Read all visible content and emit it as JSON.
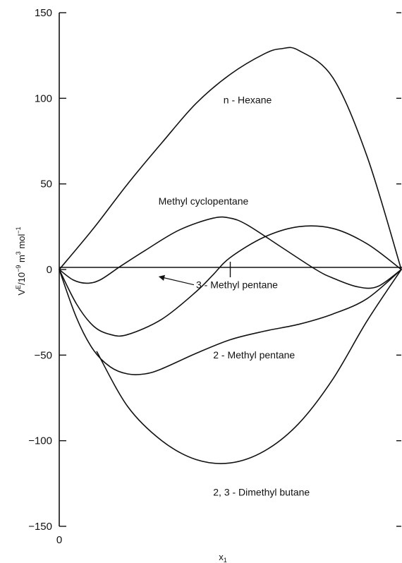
{
  "chart_data": {
    "type": "line",
    "title": "",
    "xlabel": "x",
    "xlabel_subscript": "1",
    "ylabel": "V^E/10^-9 m^3 mol^-1",
    "ylabel_parts": {
      "base": "V",
      "base_sup": "E",
      "div": "/10",
      "exp1": "−9",
      "unit": " m",
      "exp2": "3",
      "mol": " mol",
      "exp3": "−1"
    },
    "xlim": [
      0,
      1
    ],
    "ylim": [
      -150,
      150
    ],
    "yticks": [
      150,
      100,
      50,
      0,
      -50,
      -100,
      -150
    ],
    "ytick_labels": [
      "150",
      "100",
      "50",
      "0",
      "−50",
      "−100",
      "−150"
    ],
    "xtick_labels": [
      "0"
    ],
    "grid": false,
    "legend": "none",
    "colors": {
      "line": "#111111",
      "background": "#ffffff"
    },
    "series": [
      {
        "name": "n-Hexane",
        "label": "n - Hexane",
        "x": [
          0,
          0.1,
          0.2,
          0.3,
          0.4,
          0.5,
          0.6,
          0.65,
          0.7,
          0.8,
          0.9,
          1.0
        ],
        "y": [
          0,
          24,
          50,
          74,
          97,
          114,
          126,
          129,
          128,
          112,
          66,
          0
        ]
      },
      {
        "name": "Methyl cyclopentane",
        "label": "Methyl cyclopentane",
        "x": [
          0,
          0.04,
          0.08,
          0.12,
          0.18,
          0.25,
          0.35,
          0.45,
          0.5,
          0.55,
          0.65,
          0.75,
          0.8,
          0.87,
          0.93,
          1.0
        ],
        "y": [
          0,
          -6,
          -8,
          -6,
          2,
          11,
          23,
          30,
          30,
          26,
          13,
          0,
          -5,
          -10,
          -10,
          0
        ]
      },
      {
        "name": "3-Methyl pentane",
        "label": "3 - Methyl pentane",
        "x": [
          0,
          0.05,
          0.1,
          0.15,
          0.2,
          0.3,
          0.4,
          0.45,
          0.5,
          0.6,
          0.7,
          0.8,
          0.9,
          1.0
        ],
        "y": [
          0,
          -20,
          -33,
          -38,
          -38,
          -29,
          -13,
          -3,
          7,
          19,
          25,
          24,
          15,
          0
        ]
      },
      {
        "name": "2-Methyl pentane",
        "label": "2 - Methyl pentane",
        "x": [
          0,
          0.05,
          0.1,
          0.15,
          0.2,
          0.25,
          0.3,
          0.4,
          0.5,
          0.6,
          0.7,
          0.8,
          0.9,
          1.0
        ],
        "y": [
          0,
          -28,
          -47,
          -57,
          -61,
          -61,
          -58,
          -49,
          -41,
          -36,
          -32,
          -26,
          -17,
          0
        ]
      },
      {
        "name": "2,3-Dimethyl butane",
        "label": "2, 3 - Dimethyl butane",
        "x": [
          0.11,
          0.2,
          0.3,
          0.4,
          0.5,
          0.6,
          0.7,
          0.8,
          0.9,
          1.0
        ],
        "y": [
          -48,
          -80,
          -100,
          -111,
          -113,
          -106,
          -90,
          -64,
          -30,
          0
        ]
      }
    ],
    "annotations": [
      {
        "text": "n - Hexane",
        "target": "n-Hexane",
        "at": [
          0.48,
          97
        ]
      },
      {
        "text": "Methyl cyclopentane",
        "target": "Methyl cyclopentane",
        "at": [
          0.29,
          38
        ]
      },
      {
        "text": "3 - Methyl pentane",
        "target": "3-Methyl pentane",
        "at": [
          0.4,
          -11
        ],
        "arrow_to": [
          0.42,
          -5
        ]
      },
      {
        "text": "2 - Methyl pentane",
        "target": "2-Methyl pentane",
        "at": [
          0.45,
          -52
        ]
      },
      {
        "text": "2, 3 - Dimethyl butane",
        "target": "2,3-Dimethyl butane",
        "at": [
          0.45,
          -132
        ]
      }
    ]
  }
}
